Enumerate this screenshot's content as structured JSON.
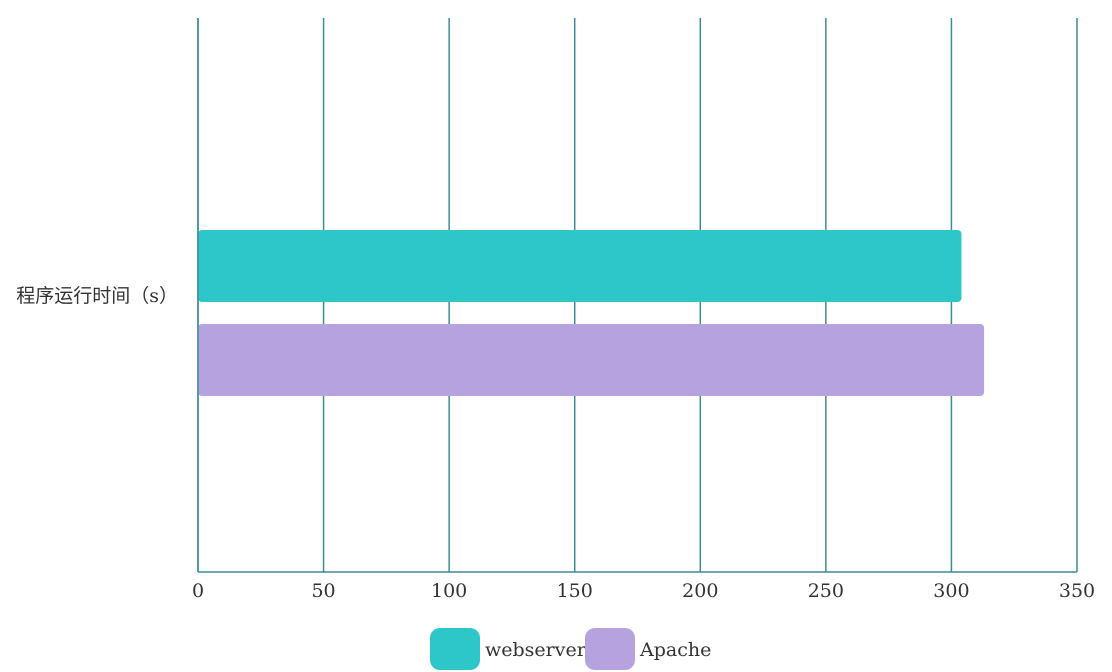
{
  "chart_data": {
    "type": "bar",
    "orientation": "horizontal",
    "categories": [
      "程序运行时间（s）"
    ],
    "series": [
      {
        "name": "webserver",
        "values": [
          304
        ],
        "color": "#2ec7c9"
      },
      {
        "name": "Apache",
        "values": [
          313
        ],
        "color": "#b6a2de"
      }
    ],
    "xlim": [
      0,
      350
    ],
    "x_ticks": [
      "0",
      "50",
      "100",
      "150",
      "200",
      "250",
      "300",
      "350"
    ],
    "grid": true,
    "legend": "bottom-center"
  },
  "colors": {
    "grid": "#3d8b93",
    "axis": "#3d8b93",
    "text": "#333333"
  }
}
